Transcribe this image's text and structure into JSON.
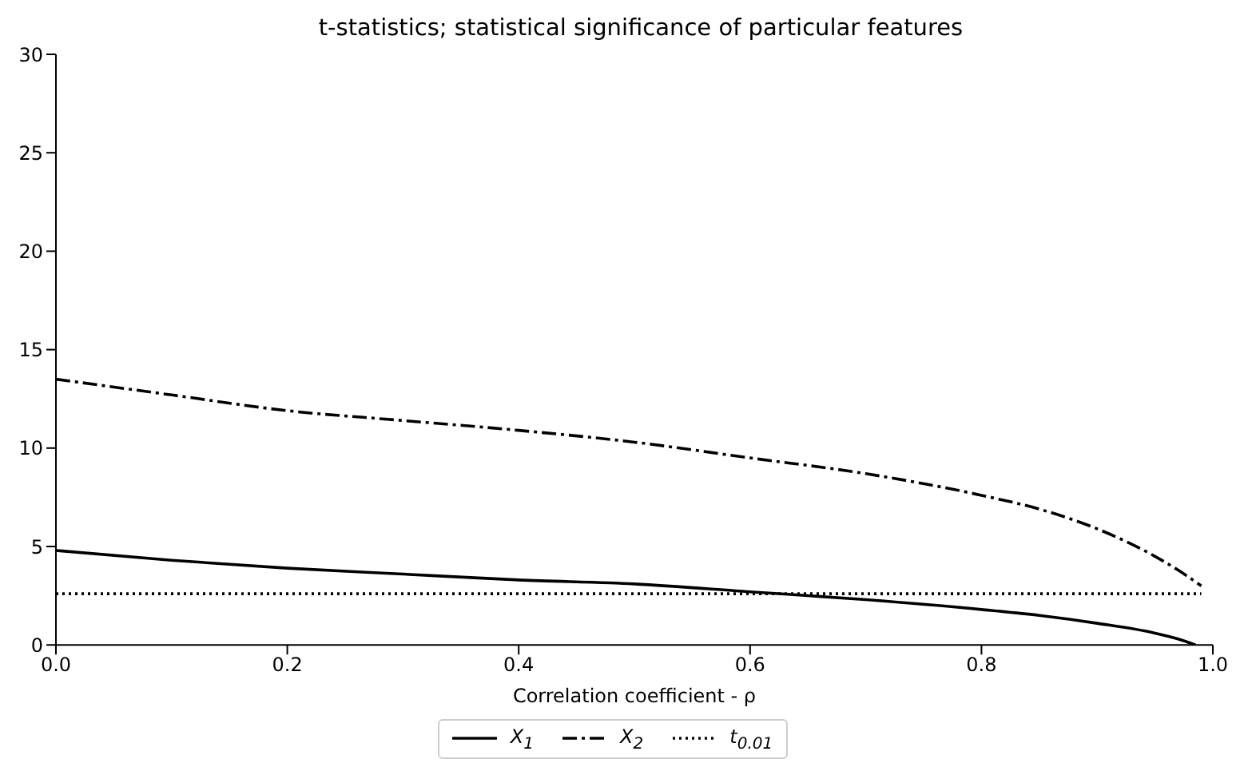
{
  "chart_data": {
    "type": "line",
    "title": "t-statistics; statistical significance of particular features",
    "xlabel": "Correlation coefficient - ρ",
    "xlim": [
      0,
      1
    ],
    "xticks": [
      {
        "value": 0,
        "label": "0.0"
      },
      0.2,
      0.4,
      0.6,
      0.8,
      {
        "value": 1,
        "label": "1.0"
      }
    ],
    "ylim": [
      0,
      30
    ],
    "yticks": [
      0,
      5,
      10,
      15,
      20,
      25,
      30
    ],
    "legend": "bottom",
    "marker": "none",
    "series": [
      {
        "name": "X$_{1}$",
        "color": "#000000",
        "line_style": "solid",
        "x": [
          0,
          0.1,
          0.2,
          0.3,
          0.4,
          0.5,
          0.6,
          0.7,
          0.8,
          0.85,
          0.9,
          0.95,
          0.97,
          0.985
        ],
        "values": [
          4.8,
          4.3,
          3.9,
          3.6,
          3.3,
          3.1,
          2.7,
          2.3,
          1.8,
          1.5,
          1.1,
          0.6,
          0.3,
          0
        ]
      },
      {
        "name": "X$_{2}$",
        "color": "#000000",
        "line_style": "dashed",
        "x": [
          0,
          0.1,
          0.2,
          0.3,
          0.4,
          0.5,
          0.6,
          0.7,
          0.8,
          0.85,
          0.9,
          0.95,
          0.97,
          0.99
        ],
        "values": [
          13.5,
          12.7,
          11.9,
          11.4,
          10.9,
          10.3,
          9.5,
          8.7,
          7.6,
          6.9,
          5.9,
          4.5,
          3.8,
          3.0
        ]
      },
      {
        "name": "t$_{0.01}$",
        "color": "#000000",
        "line_style": "dotted",
        "x": [
          0,
          0.99
        ],
        "values": [
          2.6,
          2.6
        ]
      }
    ]
  }
}
